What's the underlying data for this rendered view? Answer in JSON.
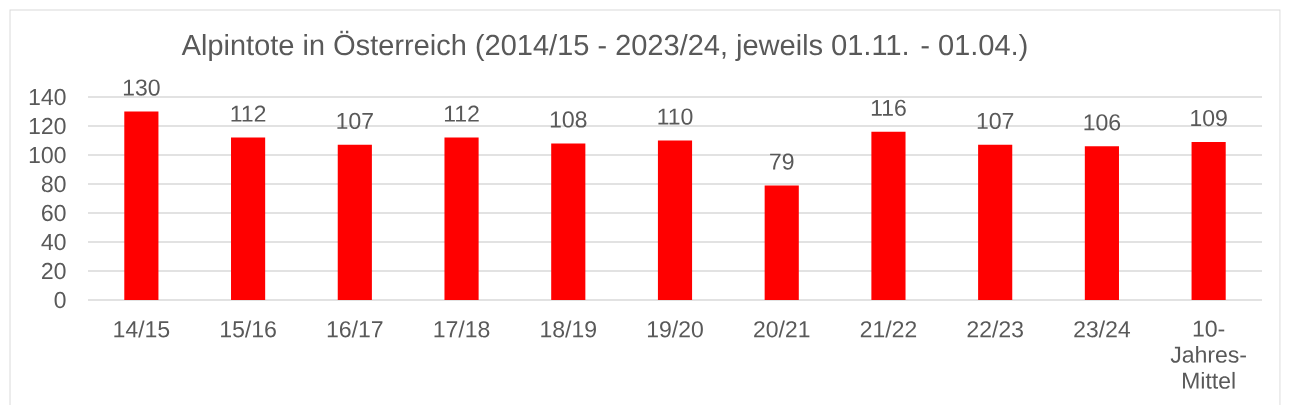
{
  "chart_data": {
    "type": "bar",
    "title": "Alpintote in Österreich (2014/15 - 2023/24, jeweils 01.11. - 01.04.)",
    "categories": [
      "14/15",
      "15/16",
      "16/17",
      "17/18",
      "18/19",
      "19/20",
      "20/21",
      "21/22",
      "22/23",
      "23/24",
      "10-Jahres-Mittel"
    ],
    "values": [
      130,
      112,
      107,
      112,
      108,
      110,
      79,
      116,
      107,
      106,
      109
    ],
    "color": "#ff0000",
    "ylim": [
      0,
      140
    ],
    "yticks": [
      0,
      20,
      40,
      60,
      80,
      100,
      120,
      140
    ],
    "grid": "y",
    "data_labels": true
  }
}
